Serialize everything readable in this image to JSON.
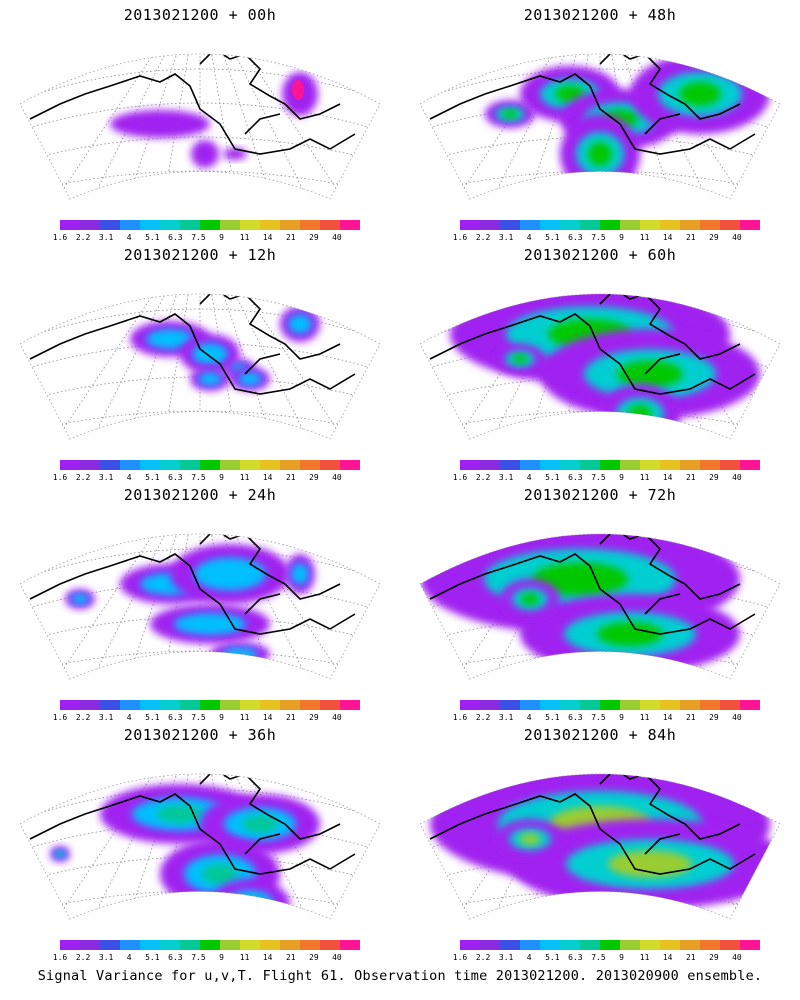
{
  "footer": "Signal Variance for u,v,T. Flight 61. Observation time 2013021200. 2013020900 ensemble.",
  "colorbar": {
    "colors": [
      "#a020f0",
      "#8a2be2",
      "#3c50e6",
      "#1e90ff",
      "#00bfff",
      "#00ced1",
      "#00c896",
      "#00c800",
      "#9acd32",
      "#d2dc28",
      "#e6c31e",
      "#e6a028",
      "#f07828",
      "#f0503c",
      "#ff1493"
    ],
    "labels": [
      "1.6",
      "2.2",
      "3.1",
      "4",
      "5.1",
      "6.3",
      "7.5",
      "9",
      "11",
      "14",
      "21",
      "29",
      "40"
    ]
  },
  "panels": [
    {
      "title": "2013021200 + 00h",
      "intensity": 0.15
    },
    {
      "title": "2013021200 + 48h",
      "intensity": 0.7
    },
    {
      "title": "2013021200 + 12h",
      "intensity": 0.35
    },
    {
      "title": "2013021200 + 60h",
      "intensity": 0.8
    },
    {
      "title": "2013021200 + 24h",
      "intensity": 0.5
    },
    {
      "title": "2013021200 + 72h",
      "intensity": 0.9
    },
    {
      "title": "2013021200 + 36h",
      "intensity": 0.6
    },
    {
      "title": "2013021200 + 84h",
      "intensity": 1.0
    }
  ]
}
